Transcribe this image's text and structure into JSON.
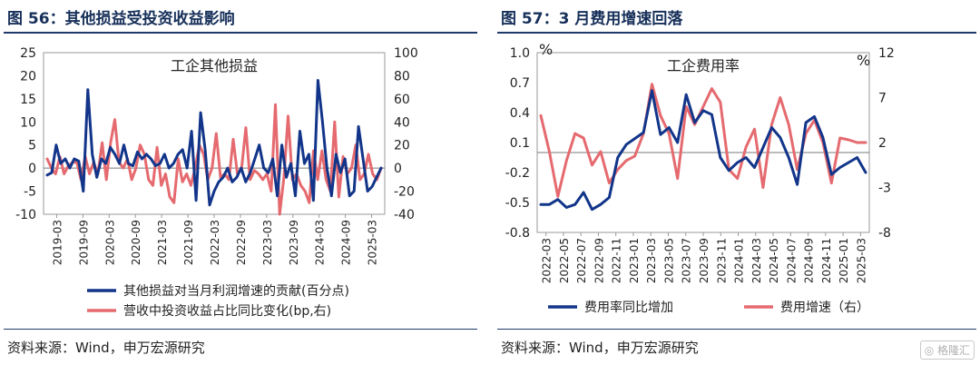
{
  "left": {
    "figure_title": "图 56：其他损益受投资收益影响",
    "source": "资料来源：Wind，申万宏源研究",
    "chart_data": {
      "type": "line",
      "title": "工企其他损益",
      "ylim_left": [
        -10,
        25
      ],
      "ylim_right": [
        -40,
        100
      ],
      "y_ticks_left": [
        "25",
        "20",
        "15",
        "10",
        "5",
        "0",
        "-5",
        "-10"
      ],
      "y_ticks_right": [
        "100",
        "80",
        "60",
        "40",
        "20",
        "0",
        "-20",
        "-40"
      ],
      "x_tick_labels": [
        "2019-03",
        "2019-09",
        "2020-03",
        "2020-09",
        "2021-03",
        "2021-09",
        "2022-03",
        "2022-09",
        "2023-03",
        "2023-09",
        "2024-03",
        "2024-09",
        "2025-03"
      ],
      "series": [
        {
          "name": "其他损益对当月利润增速的贡献(百分点)",
          "axis": "left",
          "color": "#12358a",
          "values": [
            -1.5,
            -1,
            5,
            1,
            2,
            0,
            2,
            1.5,
            -5,
            17,
            3,
            -2,
            2,
            1,
            4.5,
            3,
            1,
            5,
            1,
            0.5,
            3.5,
            2,
            3,
            2,
            0.5,
            1,
            3,
            0,
            1,
            3,
            4,
            0,
            8,
            -7,
            12,
            4,
            -8,
            -5,
            -3,
            -2,
            0,
            -3,
            -2,
            0,
            -3,
            -1,
            2,
            5,
            0,
            -1,
            2,
            -6,
            5,
            -2,
            1,
            -6,
            8,
            1,
            3,
            -7,
            19,
            10,
            0,
            -6,
            3,
            -1,
            2,
            -6,
            -5,
            9,
            2,
            -5,
            -4,
            -2,
            0
          ]
        },
        {
          "name": "营收中投资收益占比同比变化(bp,右)",
          "axis": "right",
          "color": "#e56a6f",
          "values": [
            8,
            0,
            -5,
            10,
            -5,
            2,
            5,
            5,
            -10,
            10,
            -5,
            5,
            -5,
            22,
            -10,
            22,
            42,
            5,
            0,
            8,
            -10,
            0,
            20,
            12,
            -10,
            -15,
            18,
            -15,
            -5,
            -25,
            -30,
            8,
            -12,
            -5,
            -15,
            0,
            20,
            12,
            -10,
            0,
            30,
            -8,
            -5,
            -10,
            25,
            -5,
            0,
            35,
            -10,
            -2,
            -5,
            -10,
            -5,
            -20,
            55,
            -40,
            -8,
            45,
            -10,
            -5,
            -15,
            -20,
            -30,
            15,
            -10,
            15,
            -10,
            -20,
            40,
            -25,
            10,
            -5,
            0,
            20,
            -10,
            -5,
            12,
            -5,
            -10,
            0
          ]
        }
      ]
    }
  },
  "right": {
    "figure_title": "图 57：3 月费用增速回落",
    "source": "资料来源：Wind，申万宏源研究",
    "chart_data": {
      "type": "line",
      "title": "工企费用率",
      "ylim_left": [
        -0.8,
        1.0
      ],
      "ylim_right": [
        -8,
        12
      ],
      "y_ticks_left": [
        "1.0",
        "0.7",
        "0.4",
        "0.1",
        "-0.2",
        "-0.5",
        "-0.8"
      ],
      "y_ticks_right": [
        "12",
        "7",
        "2",
        "-3",
        "-8"
      ],
      "left_unit": "%",
      "right_unit": "%",
      "x_tick_labels": [
        "2022-03",
        "2022-05",
        "2022-07",
        "2022-09",
        "2022-11",
        "2023-01",
        "2023-03",
        "2023-05",
        "2023-07",
        "2023-09",
        "2023-11",
        "2024-01",
        "2024-03",
        "2024-05",
        "2024-07",
        "2024-09",
        "2024-11",
        "2025-01",
        "2025-03"
      ],
      "series": [
        {
          "name": "费用率同比增加",
          "axis": "left",
          "color": "#12358a",
          "values": [
            -0.52,
            -0.52,
            -0.47,
            -0.55,
            -0.52,
            -0.4,
            -0.57,
            -0.52,
            -0.45,
            -0.05,
            0.08,
            0.14,
            0.2,
            0.62,
            0.18,
            0.25,
            0.1,
            0.58,
            0.3,
            0.42,
            0.38,
            -0.05,
            -0.18,
            -0.1,
            -0.05,
            -0.15,
            0.05,
            0.25,
            0.15,
            -0.05,
            -0.32,
            0.3,
            0.36,
            0.15,
            -0.22,
            -0.15,
            -0.1,
            -0.05,
            -0.2
          ]
        },
        {
          "name": "费用增速（右）",
          "axis": "right",
          "color": "#e56a6f",
          "values": [
            5,
            1,
            -4,
            0,
            3,
            2.5,
            -0.5,
            1,
            -2.5,
            -1,
            0,
            0.5,
            3,
            8.5,
            5,
            3,
            -2,
            6,
            4,
            6,
            8,
            6.5,
            -1,
            -2,
            1.5,
            3.5,
            -3,
            4,
            7,
            4,
            -1,
            3,
            4.5,
            2,
            -2.5,
            2.5,
            2.3,
            2,
            2
          ]
        }
      ]
    }
  }
}
